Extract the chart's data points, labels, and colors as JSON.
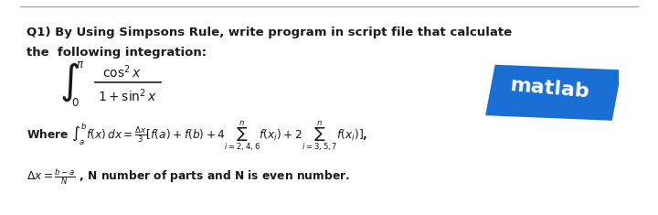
{
  "bg_color": "#ffffff",
  "top_line_color": "#aaaaaa",
  "text_color": "#1a1a1a",
  "title_line1": "Q1) By Using Simpsons Rule, write program in script file that calculate",
  "title_line2": "the  following integration:",
  "integral_upper": "π",
  "integral_lower": "0",
  "integral_numerator": "cos²x",
  "integral_denominator": "1+sin²x",
  "formula_line": "Where $\\int_a^b f(x)\\,dx = \\frac{\\Delta x}{3}[f(a) + f(b) + 4\\sum_{i=2,4,6}^{n} f(x_i) + 2\\sum_{i=3,5,7}^{n} f(x_i)]$,",
  "delta_line": "$\\Delta x = \\frac{b-a}{N}$ , N number of parts and N is even number.",
  "matlab_label": "matlab",
  "matlab_bg": "#1a6fd4",
  "matlab_text": "#ffffff"
}
